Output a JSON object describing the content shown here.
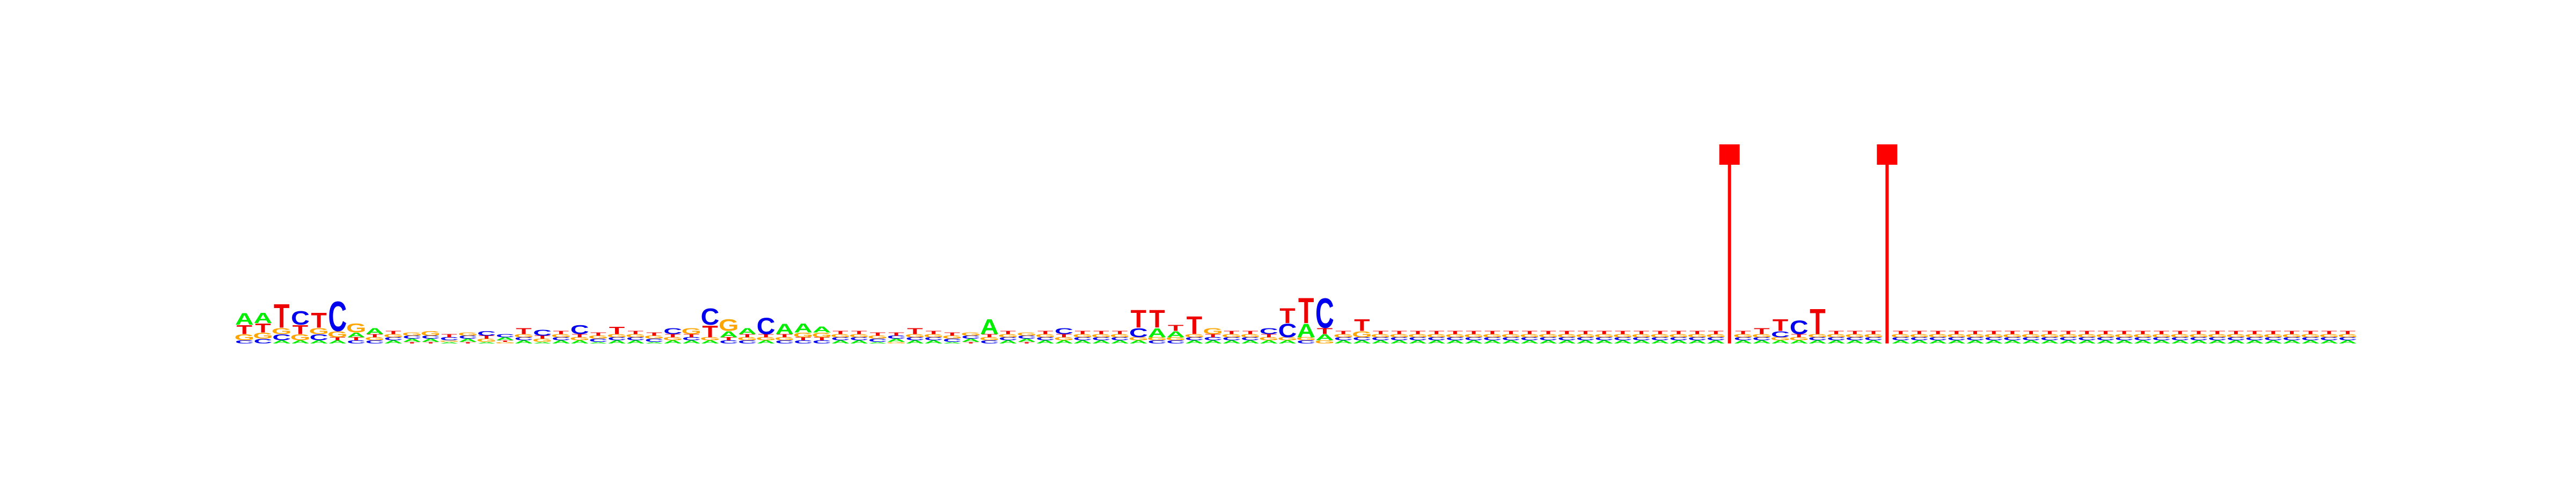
{
  "colors": {
    "A": "#00ee00",
    "C": "#0000ee",
    "G": "#ffa500",
    "T": "#ee0000",
    "gap_marker": "#ff0000",
    "background": "#ffffff"
  },
  "chart_data": {
    "type": "sequence-logo",
    "title": "",
    "xlabel": "",
    "ylabel": "",
    "alphabet": [
      "A",
      "C",
      "G",
      "T"
    ],
    "ylim": [
      0,
      0.6
    ],
    "gap_markers": [
      {
        "after_position": 80,
        "height": 0.6
      },
      {
        "after_position": 88,
        "height": 0.6
      }
    ],
    "positions": [
      {
        "A": 0.04,
        "C": 0.01,
        "G": 0.02,
        "T": 0.03
      },
      {
        "A": 0.035,
        "C": 0.015,
        "G": 0.02,
        "T": 0.03
      },
      {
        "A": 0.01,
        "C": 0.02,
        "G": 0.02,
        "T": 0.08
      },
      {
        "A": 0.01,
        "C": 0.045,
        "G": 0.02,
        "T": 0.03
      },
      {
        "A": 0.01,
        "C": 0.02,
        "G": 0.02,
        "T": 0.05
      },
      {
        "A": 0.01,
        "C": 0.1,
        "G": 0.02,
        "T": 0.01
      },
      {
        "A": 0.015,
        "C": 0.01,
        "G": 0.03,
        "T": 0.01
      },
      {
        "A": 0.02,
        "C": 0.01,
        "G": 0.01,
        "T": 0.01
      },
      {
        "A": 0.01,
        "C": 0.01,
        "G": 0.01,
        "T": 0.01
      },
      {
        "A": 0.01,
        "C": 0.01,
        "G": 0.01,
        "T": 0.005
      },
      {
        "A": 0.01,
        "C": 0.01,
        "G": 0.015,
        "T": 0.005
      },
      {
        "A": 0.005,
        "C": 0.01,
        "G": 0.005,
        "T": 0.01
      },
      {
        "A": 0.01,
        "C": 0.01,
        "G": 0.01,
        "T": 0.005
      },
      {
        "A": 0.005,
        "C": 0.015,
        "G": 0.01,
        "T": 0.01
      },
      {
        "A": 0.01,
        "C": 0.01,
        "G": 0.005,
        "T": 0.005
      },
      {
        "A": 0.01,
        "C": 0.01,
        "G": 0.01,
        "T": 0.02
      },
      {
        "A": 0.005,
        "C": 0.02,
        "G": 0.01,
        "T": 0.01
      },
      {
        "A": 0.01,
        "C": 0.01,
        "G": 0.01,
        "T": 0.01
      },
      {
        "A": 0.01,
        "C": 0.03,
        "G": 0.01,
        "T": 0.01
      },
      {
        "A": 0.005,
        "C": 0.01,
        "G": 0.01,
        "T": 0.01
      },
      {
        "A": 0.01,
        "C": 0.01,
        "G": 0.01,
        "T": 0.025
      },
      {
        "A": 0.01,
        "C": 0.01,
        "G": 0.01,
        "T": 0.01
      },
      {
        "A": 0.005,
        "C": 0.01,
        "G": 0.01,
        "T": 0.01
      },
      {
        "A": 0.01,
        "C": 0.02,
        "G": 0.01,
        "T": 0.01
      },
      {
        "A": 0.01,
        "C": 0.01,
        "G": 0.02,
        "T": 0.01
      },
      {
        "A": 0.01,
        "C": 0.055,
        "G": 0.01,
        "T": 0.04
      },
      {
        "A": 0.02,
        "C": 0.01,
        "G": 0.04,
        "T": 0.01
      },
      {
        "A": 0.02,
        "C": 0.01,
        "G": 0.01,
        "T": 0.01
      },
      {
        "A": 0.01,
        "C": 0.055,
        "G": 0.01,
        "T": 0.01
      },
      {
        "A": 0.035,
        "C": 0.01,
        "G": 0.01,
        "T": 0.01
      },
      {
        "A": 0.03,
        "C": 0.01,
        "G": 0.015,
        "T": 0.01
      },
      {
        "A": 0.02,
        "C": 0.01,
        "G": 0.015,
        "T": 0.01
      },
      {
        "A": 0.01,
        "C": 0.01,
        "G": 0.01,
        "T": 0.01
      },
      {
        "A": 0.01,
        "C": 0.01,
        "G": 0.01,
        "T": 0.01
      },
      {
        "A": 0.005,
        "C": 0.01,
        "G": 0.01,
        "T": 0.01
      },
      {
        "A": 0.01,
        "C": 0.01,
        "G": 0.005,
        "T": 0.01
      },
      {
        "A": 0.01,
        "C": 0.01,
        "G": 0.01,
        "T": 0.02
      },
      {
        "A": 0.01,
        "C": 0.01,
        "G": 0.01,
        "T": 0.01
      },
      {
        "A": 0.005,
        "C": 0.01,
        "G": 0.01,
        "T": 0.01
      },
      {
        "A": 0.01,
        "C": 0.01,
        "G": 0.01,
        "T": 0.005
      },
      {
        "A": 0.05,
        "C": 0.01,
        "G": 0.01,
        "T": 0.01
      },
      {
        "A": 0.01,
        "C": 0.01,
        "G": 0.01,
        "T": 0.01
      },
      {
        "A": 0.01,
        "C": 0.01,
        "G": 0.01,
        "T": 0.005
      },
      {
        "A": 0.01,
        "C": 0.01,
        "G": 0.01,
        "T": 0.01
      },
      {
        "A": 0.01,
        "C": 0.02,
        "G": 0.01,
        "T": 0.01
      },
      {
        "A": 0.01,
        "C": 0.01,
        "G": 0.01,
        "T": 0.01
      },
      {
        "A": 0.01,
        "C": 0.01,
        "G": 0.01,
        "T": 0.01
      },
      {
        "A": 0.01,
        "C": 0.01,
        "G": 0.01,
        "T": 0.01
      },
      {
        "A": 0.01,
        "C": 0.03,
        "G": 0.01,
        "T": 0.06
      },
      {
        "A": 0.03,
        "C": 0.01,
        "G": 0.01,
        "T": 0.06
      },
      {
        "A": 0.02,
        "C": 0.01,
        "G": 0.01,
        "T": 0.02
      },
      {
        "A": 0.01,
        "C": 0.01,
        "G": 0.01,
        "T": 0.06
      },
      {
        "A": 0.01,
        "C": 0.01,
        "G": 0.02,
        "T": 0.01
      },
      {
        "A": 0.01,
        "C": 0.01,
        "G": 0.01,
        "T": 0.01
      },
      {
        "A": 0.01,
        "C": 0.01,
        "G": 0.01,
        "T": 0.01
      },
      {
        "A": 0.01,
        "C": 0.02,
        "G": 0.01,
        "T": 0.01
      },
      {
        "A": 0.01,
        "C": 0.045,
        "G": 0.01,
        "T": 0.05
      },
      {
        "A": 0.045,
        "C": 0.01,
        "G": 0.01,
        "T": 0.085
      },
      {
        "A": 0.02,
        "C": 0.1,
        "G": 0.01,
        "T": 0.02
      },
      {
        "A": 0.01,
        "C": 0.01,
        "G": 0.01,
        "T": 0.01
      },
      {
        "A": 0.01,
        "C": 0.01,
        "G": 0.02,
        "T": 0.04
      },
      {
        "A": 0.01,
        "C": 0.01,
        "G": 0.01,
        "T": 0.01
      },
      {
        "A": 0.01,
        "C": 0.01,
        "G": 0.01,
        "T": 0.01
      },
      {
        "A": 0.01,
        "C": 0.01,
        "G": 0.01,
        "T": 0.01
      },
      {
        "A": 0.01,
        "C": 0.01,
        "G": 0.01,
        "T": 0.01
      },
      {
        "A": 0.01,
        "C": 0.01,
        "G": 0.01,
        "T": 0.01
      },
      {
        "A": 0.01,
        "C": 0.01,
        "G": 0.01,
        "T": 0.01
      },
      {
        "A": 0.01,
        "C": 0.01,
        "G": 0.01,
        "T": 0.01
      },
      {
        "A": 0.01,
        "C": 0.01,
        "G": 0.01,
        "T": 0.01
      },
      {
        "A": 0.01,
        "C": 0.01,
        "G": 0.01,
        "T": 0.01
      },
      {
        "A": 0.01,
        "C": 0.01,
        "G": 0.01,
        "T": 0.01
      },
      {
        "A": 0.01,
        "C": 0.01,
        "G": 0.01,
        "T": 0.01
      },
      {
        "A": 0.01,
        "C": 0.01,
        "G": 0.01,
        "T": 0.01
      },
      {
        "A": 0.01,
        "C": 0.01,
        "G": 0.01,
        "T": 0.01
      },
      {
        "A": 0.01,
        "C": 0.01,
        "G": 0.01,
        "T": 0.01
      },
      {
        "A": 0.01,
        "C": 0.01,
        "G": 0.01,
        "T": 0.01
      },
      {
        "A": 0.01,
        "C": 0.01,
        "G": 0.01,
        "T": 0.01
      },
      {
        "A": 0.01,
        "C": 0.01,
        "G": 0.01,
        "T": 0.01
      },
      {
        "A": 0.01,
        "C": 0.01,
        "G": 0.01,
        "T": 0.01
      },
      {
        "A": 0.01,
        "C": 0.01,
        "G": 0.01,
        "T": 0.01
      },
      {
        "A": 0.01,
        "C": 0.01,
        "G": 0.01,
        "T": 0.01
      },
      {
        "A": 0.01,
        "C": 0.01,
        "G": 0.01,
        "T": 0.02
      },
      {
        "A": 0.01,
        "C": 0.02,
        "G": 0.01,
        "T": 0.04
      },
      {
        "A": 0.01,
        "C": 0.045,
        "G": 0.01,
        "T": 0.01
      },
      {
        "A": 0.01,
        "C": 0.01,
        "G": 0.01,
        "T": 0.085
      },
      {
        "A": 0.01,
        "C": 0.01,
        "G": 0.01,
        "T": 0.01
      },
      {
        "A": 0.01,
        "C": 0.01,
        "G": 0.01,
        "T": 0.01
      },
      {
        "A": 0.01,
        "C": 0.01,
        "G": 0.01,
        "T": 0.01
      },
      {
        "A": 0.01,
        "C": 0.01,
        "G": 0.01,
        "T": 0.01
      },
      {
        "A": 0.01,
        "C": 0.01,
        "G": 0.01,
        "T": 0.01
      },
      {
        "A": 0.01,
        "C": 0.01,
        "G": 0.01,
        "T": 0.01
      },
      {
        "A": 0.01,
        "C": 0.01,
        "G": 0.01,
        "T": 0.01
      },
      {
        "A": 0.01,
        "C": 0.01,
        "G": 0.01,
        "T": 0.01
      },
      {
        "A": 0.01,
        "C": 0.01,
        "G": 0.01,
        "T": 0.01
      },
      {
        "A": 0.01,
        "C": 0.01,
        "G": 0.01,
        "T": 0.01
      },
      {
        "A": 0.01,
        "C": 0.01,
        "G": 0.01,
        "T": 0.01
      },
      {
        "A": 0.01,
        "C": 0.01,
        "G": 0.01,
        "T": 0.01
      },
      {
        "A": 0.01,
        "C": 0.01,
        "G": 0.01,
        "T": 0.01
      },
      {
        "A": 0.01,
        "C": 0.01,
        "G": 0.01,
        "T": 0.01
      },
      {
        "A": 0.01,
        "C": 0.01,
        "G": 0.01,
        "T": 0.01
      },
      {
        "A": 0.01,
        "C": 0.01,
        "G": 0.01,
        "T": 0.01
      },
      {
        "A": 0.01,
        "C": 0.01,
        "G": 0.01,
        "T": 0.01
      },
      {
        "A": 0.01,
        "C": 0.01,
        "G": 0.01,
        "T": 0.01
      },
      {
        "A": 0.01,
        "C": 0.01,
        "G": 0.01,
        "T": 0.01
      },
      {
        "A": 0.01,
        "C": 0.01,
        "G": 0.01,
        "T": 0.01
      },
      {
        "A": 0.01,
        "C": 0.01,
        "G": 0.01,
        "T": 0.01
      },
      {
        "A": 0.01,
        "C": 0.01,
        "G": 0.01,
        "T": 0.01
      },
      {
        "A": 0.01,
        "C": 0.01,
        "G": 0.01,
        "T": 0.01
      },
      {
        "A": 0.01,
        "C": 0.01,
        "G": 0.01,
        "T": 0.01
      },
      {
        "A": 0.01,
        "C": 0.01,
        "G": 0.01,
        "T": 0.01
      },
      {
        "A": 0.01,
        "C": 0.01,
        "G": 0.01,
        "T": 0.01
      },
      {
        "A": 0.01,
        "C": 0.01,
        "G": 0.01,
        "T": 0.01
      },
      {
        "A": 0.01,
        "C": 0.01,
        "G": 0.01,
        "T": 0.01
      }
    ]
  }
}
